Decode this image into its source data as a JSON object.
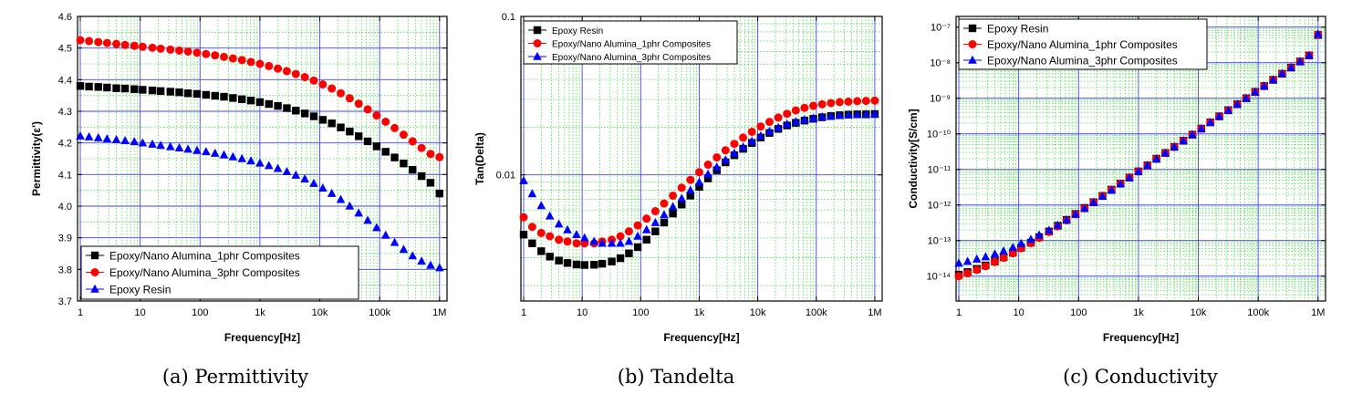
{
  "chart_data": [
    {
      "type": "scatter",
      "caption": "(a) Permittivity",
      "xlabel": "Frequency[Hz]",
      "ylabel": "Permittivity(ε')",
      "xscale": "log",
      "yscale": "linear",
      "xlim": [
        1,
        1200000
      ],
      "ylim": [
        3.7,
        4.6
      ],
      "x_ticks": [
        1,
        10,
        100,
        1000,
        10000,
        100000,
        1000000
      ],
      "x_tick_labels": [
        "1",
        "10",
        "100",
        "1k",
        "10k",
        "100k",
        "1M"
      ],
      "y_ticks": [
        3.7,
        3.8,
        3.9,
        4.0,
        4.1,
        4.2,
        4.3,
        4.4,
        4.5,
        4.6
      ],
      "y_tick_labels": [
        "3.7",
        "3.8",
        "3.9",
        "4.0",
        "4.1",
        "4.2",
        "4.3",
        "4.4",
        "4.5",
        "4.6"
      ],
      "grid": true,
      "legend_position": "bottom-left",
      "series": [
        {
          "name": "Epoxy/Nano Alumina_1phr Composites",
          "color": "#000000",
          "marker": "square",
          "x": [
            1,
            1.4,
            2,
            2.8,
            4,
            5.6,
            8,
            11,
            16,
            22,
            32,
            45,
            63,
            89,
            126,
            178,
            251,
            355,
            501,
            708,
            1000,
            1413,
            1995,
            2818,
            3981,
            5623,
            7943,
            11220,
            15849,
            22387,
            31623,
            44668,
            63096,
            89125,
            125893,
            177828,
            251189,
            354813,
            501187,
            707946,
            1000000
          ],
          "y": [
            4.38,
            4.378,
            4.377,
            4.375,
            4.373,
            4.372,
            4.37,
            4.368,
            4.366,
            4.364,
            4.362,
            4.36,
            4.357,
            4.355,
            4.352,
            4.349,
            4.346,
            4.342,
            4.338,
            4.334,
            4.329,
            4.323,
            4.317,
            4.31,
            4.302,
            4.293,
            4.284,
            4.273,
            4.262,
            4.249,
            4.236,
            4.221,
            4.205,
            4.189,
            4.172,
            4.154,
            4.135,
            4.115,
            4.095,
            4.074,
            4.04
          ]
        },
        {
          "name": "Epoxy/Nano Alumina_3phr Composites",
          "color": "#ff0000",
          "marker": "circle",
          "x": [
            1,
            1.4,
            2,
            2.8,
            4,
            5.6,
            8,
            11,
            16,
            22,
            32,
            45,
            63,
            89,
            126,
            178,
            251,
            355,
            501,
            708,
            1000,
            1413,
            1995,
            2818,
            3981,
            5623,
            7943,
            11220,
            15849,
            22387,
            31623,
            44668,
            63096,
            89125,
            125893,
            177828,
            251189,
            354813,
            501187,
            707946,
            1000000
          ],
          "y": [
            4.525,
            4.522,
            4.519,
            4.516,
            4.513,
            4.51,
            4.507,
            4.504,
            4.501,
            4.498,
            4.495,
            4.492,
            4.489,
            4.485,
            4.481,
            4.477,
            4.472,
            4.467,
            4.462,
            4.456,
            4.45,
            4.443,
            4.435,
            4.427,
            4.418,
            4.408,
            4.397,
            4.385,
            4.372,
            4.357,
            4.341,
            4.324,
            4.306,
            4.287,
            4.267,
            4.247,
            4.226,
            4.205,
            4.184,
            4.165,
            4.155
          ]
        },
        {
          "name": "Epoxy Resin",
          "color": "#0000ff",
          "marker": "triangle",
          "x": [
            1,
            1.4,
            2,
            2.8,
            4,
            5.6,
            8,
            11,
            16,
            22,
            32,
            45,
            63,
            89,
            126,
            178,
            251,
            355,
            501,
            708,
            1000,
            1413,
            1995,
            2818,
            3981,
            5623,
            7943,
            11220,
            15849,
            22387,
            31623,
            44668,
            63096,
            89125,
            125893,
            177828,
            251189,
            354813,
            501187,
            707946,
            1000000
          ],
          "y": [
            4.222,
            4.219,
            4.216,
            4.213,
            4.21,
            4.207,
            4.204,
            4.2,
            4.196,
            4.192,
            4.188,
            4.184,
            4.18,
            4.176,
            4.172,
            4.167,
            4.162,
            4.156,
            4.15,
            4.143,
            4.136,
            4.128,
            4.119,
            4.109,
            4.098,
            4.086,
            4.072,
            4.057,
            4.04,
            4.021,
            4.0,
            3.978,
            3.955,
            3.932,
            3.908,
            3.885,
            3.863,
            3.843,
            3.826,
            3.813,
            3.805
          ]
        }
      ]
    },
    {
      "type": "scatter",
      "caption": "(b) Tandelta",
      "xlabel": "Frequency[Hz]",
      "ylabel": "Tan(Delta)",
      "xscale": "log",
      "yscale": "log",
      "xlim": [
        1,
        1200000
      ],
      "ylim": [
        0.0016,
        0.1
      ],
      "x_ticks": [
        1,
        10,
        100,
        1000,
        10000,
        100000,
        1000000
      ],
      "x_tick_labels": [
        "1",
        "10",
        "100",
        "1k",
        "10k",
        "100k",
        "1M"
      ],
      "y_ticks": [
        0.01,
        0.1
      ],
      "y_tick_labels": [
        "0.01",
        "0.1"
      ],
      "grid": true,
      "legend_position": "top-left",
      "series": [
        {
          "name": "Epoxy Resin",
          "color": "#000000",
          "marker": "square",
          "x": [
            1,
            1.4,
            2,
            2.8,
            4,
            5.6,
            8,
            11,
            16,
            22,
            32,
            45,
            63,
            89,
            126,
            178,
            251,
            355,
            501,
            708,
            1000,
            1413,
            1995,
            2818,
            3981,
            5623,
            7943,
            11220,
            15849,
            22387,
            31623,
            44668,
            63096,
            89125,
            125893,
            177828,
            251189,
            354813,
            501187,
            707946,
            1000000
          ],
          "y": [
            0.0042,
            0.0037,
            0.0033,
            0.00305,
            0.00288,
            0.00278,
            0.00272,
            0.0027,
            0.00271,
            0.00275,
            0.00284,
            0.00298,
            0.0032,
            0.0035,
            0.0039,
            0.0044,
            0.005,
            0.0057,
            0.0065,
            0.0074,
            0.0084,
            0.0095,
            0.0107,
            0.012,
            0.0133,
            0.0146,
            0.0159,
            0.0172,
            0.0184,
            0.0195,
            0.0205,
            0.0213,
            0.022,
            0.0226,
            0.0231,
            0.0235,
            0.0238,
            0.024,
            0.0241,
            0.0241,
            0.0242
          ]
        },
        {
          "name": "Epoxy/Nano Alumina_1phr Composites",
          "color": "#ff0000",
          "marker": "circle",
          "x": [
            1,
            1.4,
            2,
            2.8,
            4,
            5.6,
            8,
            11,
            16,
            22,
            32,
            45,
            63,
            89,
            126,
            178,
            251,
            355,
            501,
            708,
            1000,
            1413,
            1995,
            2818,
            3981,
            5623,
            7943,
            11220,
            15849,
            22387,
            31623,
            44668,
            63096,
            89125,
            125893,
            177828,
            251189,
            354813,
            501187,
            707946,
            1000000
          ],
          "y": [
            0.0054,
            0.0047,
            0.0043,
            0.0041,
            0.0039,
            0.0038,
            0.0037,
            0.0037,
            0.0037,
            0.0038,
            0.0039,
            0.0041,
            0.0044,
            0.0048,
            0.0053,
            0.0059,
            0.0066,
            0.0074,
            0.0083,
            0.0093,
            0.0104,
            0.0116,
            0.0129,
            0.0143,
            0.0157,
            0.0172,
            0.0187,
            0.0202,
            0.0216,
            0.023,
            0.0243,
            0.0255,
            0.0265,
            0.0273,
            0.0279,
            0.0284,
            0.0288,
            0.029,
            0.0292,
            0.0293,
            0.0294
          ]
        },
        {
          "name": "Epoxy/Nano Alumina_3phr Composites",
          "color": "#0000ff",
          "marker": "triangle",
          "x": [
            1,
            1.4,
            2,
            2.8,
            4,
            5.6,
            8,
            11,
            16,
            22,
            32,
            45,
            63,
            89,
            126,
            178,
            251,
            355,
            501,
            708,
            1000,
            1413,
            1995,
            2818,
            3981,
            5623,
            7943,
            11220,
            15849,
            22387,
            31623,
            44668,
            63096,
            89125,
            125893,
            177828,
            251189,
            354813,
            501187,
            707946,
            1000000
          ],
          "y": [
            0.0092,
            0.0076,
            0.0064,
            0.0055,
            0.0049,
            0.0045,
            0.0042,
            0.004,
            0.0038,
            0.0037,
            0.0037,
            0.0037,
            0.0038,
            0.0041,
            0.0045,
            0.005,
            0.0056,
            0.0063,
            0.0071,
            0.008,
            0.009,
            0.0101,
            0.0112,
            0.0124,
            0.0137,
            0.015,
            0.0163,
            0.0176,
            0.0188,
            0.0199,
            0.0209,
            0.0217,
            0.0223,
            0.0228,
            0.0232,
            0.0235,
            0.0237,
            0.0239,
            0.024,
            0.0241,
            0.0242
          ]
        }
      ]
    },
    {
      "type": "scatter",
      "caption": "(c) Conductivity",
      "xlabel": "Frequency[Hz]",
      "ylabel": "Conductivity[S/cm]",
      "xscale": "log",
      "yscale": "log",
      "xlim": [
        1,
        1200000
      ],
      "ylim": [
        2e-15,
        2e-07
      ],
      "x_ticks": [
        1,
        10,
        100,
        1000,
        10000,
        100000,
        1000000
      ],
      "x_tick_labels": [
        "1",
        "10",
        "100",
        "1k",
        "10k",
        "100k",
        "1M"
      ],
      "y_ticks": [
        1e-14,
        1e-13,
        1e-12,
        1e-11,
        1e-10,
        1e-09,
        1e-08,
        1e-07
      ],
      "y_tick_labels": [
        "10⁻¹⁴",
        "10⁻¹³",
        "10⁻¹²",
        "10⁻¹¹",
        "10⁻¹⁰",
        "10⁻⁹",
        "10⁻⁸",
        "10⁻⁷"
      ],
      "grid": true,
      "legend_position": "top-left",
      "series": [
        {
          "name": "Epoxy Resin",
          "color": "#000000",
          "marker": "square",
          "x": [
            1,
            1.4,
            2,
            2.8,
            4,
            5.6,
            8,
            11,
            16,
            22,
            32,
            45,
            63,
            89,
            126,
            178,
            251,
            355,
            501,
            708,
            1000,
            1413,
            1995,
            2818,
            3981,
            5623,
            7943,
            11220,
            15849,
            22387,
            31623,
            44668,
            63096,
            89125,
            125893,
            177828,
            251189,
            354813,
            501187,
            707946,
            1000000
          ],
          "y": [
            1.1e-14,
            1.3e-14,
            1.6e-14,
            2e-14,
            2.6e-14,
            3.4e-14,
            4.6e-14,
            6.3e-14,
            8.7e-14,
            1.25e-13,
            1.8e-13,
            2.6e-13,
            3.8e-13,
            5.6e-13,
            8.3e-13,
            1.2e-12,
            1.8e-12,
            2.7e-12,
            4e-12,
            5.9e-12,
            8.8e-12,
            1.3e-11,
            2e-11,
            2.9e-11,
            4.3e-11,
            6.4e-11,
            9.5e-11,
            1.4e-10,
            2.1e-10,
            3.1e-10,
            4.6e-10,
            6.8e-10,
            1e-09,
            1.5e-09,
            2.2e-09,
            3.3e-09,
            4.9e-09,
            7.3e-09,
            1.08e-08,
            1.6e-08,
            6e-08
          ]
        },
        {
          "name": "Epoxy/Nano Alumina_1phr Composites",
          "color": "#ff0000",
          "marker": "circle",
          "x": [
            1,
            1.4,
            2,
            2.8,
            4,
            5.6,
            8,
            11,
            16,
            22,
            32,
            45,
            63,
            89,
            126,
            178,
            251,
            355,
            501,
            708,
            1000,
            1413,
            1995,
            2818,
            3981,
            5623,
            7943,
            11220,
            15849,
            22387,
            31623,
            44668,
            63096,
            89125,
            125893,
            177828,
            251189,
            354813,
            501187,
            707946,
            1000000
          ],
          "y": [
            1e-14,
            1.2e-14,
            1.5e-14,
            1.9e-14,
            2.5e-14,
            3.3e-14,
            4.4e-14,
            6.1e-14,
            8.5e-14,
            1.2e-13,
            1.75e-13,
            2.5e-13,
            3.7e-13,
            5.5e-13,
            8.1e-13,
            1.2e-12,
            1.8e-12,
            2.7e-12,
            4e-12,
            5.9e-12,
            8.8e-12,
            1.3e-11,
            2e-11,
            2.9e-11,
            4.3e-11,
            6.4e-11,
            9.5e-11,
            1.4e-10,
            2.1e-10,
            3.1e-10,
            4.6e-10,
            6.8e-10,
            1e-09,
            1.5e-09,
            2.2e-09,
            3.3e-09,
            4.9e-09,
            7.3e-09,
            1.08e-08,
            1.6e-08,
            6.2e-08
          ]
        },
        {
          "name": "Epoxy/Nano Alumina_3phr Composites",
          "color": "#0000ff",
          "marker": "triangle",
          "x": [
            1,
            1.4,
            2,
            2.8,
            4,
            5.6,
            8,
            11,
            16,
            22,
            32,
            45,
            63,
            89,
            126,
            178,
            251,
            355,
            501,
            708,
            1000,
            1413,
            1995,
            2818,
            3981,
            5623,
            7943,
            11220,
            15849,
            22387,
            31623,
            44668,
            63096,
            89125,
            125893,
            177828,
            251189,
            354813,
            501187,
            707946,
            1000000
          ],
          "y": [
            2.3e-14,
            2.6e-14,
            3e-14,
            3.5e-14,
            4.2e-14,
            5.1e-14,
            6.4e-14,
            8.2e-14,
            1.07e-13,
            1.43e-13,
            1.95e-13,
            2.7e-13,
            3.8e-13,
            5.5e-13,
            8e-13,
            1.18e-12,
            1.75e-12,
            2.6e-12,
            3.9e-12,
            5.8e-12,
            8.7e-12,
            1.3e-11,
            1.95e-11,
            2.9e-11,
            4.3e-11,
            6.4e-11,
            9.5e-11,
            1.4e-10,
            2.1e-10,
            3.1e-10,
            4.6e-10,
            6.8e-10,
            1e-09,
            1.5e-09,
            2.2e-09,
            3.3e-09,
            4.9e-09,
            7.3e-09,
            1.08e-08,
            1.6e-08,
            6.4e-08
          ]
        }
      ]
    }
  ]
}
